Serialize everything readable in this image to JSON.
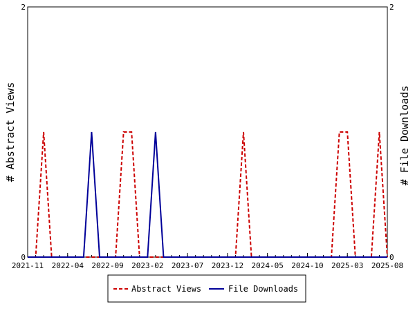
{
  "chart_data": {
    "type": "line",
    "x_tick_labels": [
      "2021-11",
      "2022-04",
      "2022-09",
      "2023-02",
      "2023-07",
      "2023-12",
      "2024-05",
      "2024-10",
      "2025-03",
      "2025-08"
    ],
    "y_ticks_left": [
      "0",
      "2"
    ],
    "y_ticks_right": [
      "0",
      "2"
    ],
    "ylabel_left": "# Abstract Views",
    "ylabel_right": "# File Downloads",
    "ylim": [
      0,
      2
    ],
    "x_range_months": [
      "2021-11",
      "2025-08"
    ],
    "grid": false,
    "legend_position": "bottom",
    "series": [
      {
        "name": "Abstract Views",
        "color": "#cc0000",
        "style": "dashed",
        "points": [
          [
            "2021-11",
            0
          ],
          [
            "2021-12",
            0
          ],
          [
            "2022-01",
            1
          ],
          [
            "2022-02",
            0
          ],
          [
            "2022-03",
            0
          ],
          [
            "2022-04",
            0
          ],
          [
            "2022-05",
            0
          ],
          [
            "2022-06",
            0
          ],
          [
            "2022-07",
            0
          ],
          [
            "2022-08",
            0
          ],
          [
            "2022-09",
            0
          ],
          [
            "2022-10",
            0
          ],
          [
            "2022-11",
            1
          ],
          [
            "2022-12",
            1
          ],
          [
            "2023-01",
            0
          ],
          [
            "2023-02",
            0
          ],
          [
            "2023-03",
            0
          ],
          [
            "2023-04",
            0
          ],
          [
            "2023-05",
            0
          ],
          [
            "2023-06",
            0
          ],
          [
            "2023-07",
            0
          ],
          [
            "2023-08",
            0
          ],
          [
            "2023-09",
            0
          ],
          [
            "2023-10",
            0
          ],
          [
            "2023-11",
            0
          ],
          [
            "2023-12",
            0
          ],
          [
            "2024-01",
            0
          ],
          [
            "2024-02",
            1
          ],
          [
            "2024-03",
            0
          ],
          [
            "2024-04",
            0
          ],
          [
            "2024-05",
            0
          ],
          [
            "2024-06",
            0
          ],
          [
            "2024-07",
            0
          ],
          [
            "2024-08",
            0
          ],
          [
            "2024-09",
            0
          ],
          [
            "2024-10",
            0
          ],
          [
            "2024-11",
            0
          ],
          [
            "2024-12",
            0
          ],
          [
            "2025-01",
            0
          ],
          [
            "2025-02",
            1
          ],
          [
            "2025-03",
            1
          ],
          [
            "2025-04",
            0
          ],
          [
            "2025-05",
            0
          ],
          [
            "2025-06",
            0
          ],
          [
            "2025-07",
            1
          ],
          [
            "2025-08",
            0
          ]
        ]
      },
      {
        "name": "File Downloads",
        "color": "#000099",
        "style": "solid",
        "points": [
          [
            "2021-11",
            0
          ],
          [
            "2021-12",
            0
          ],
          [
            "2022-01",
            0
          ],
          [
            "2022-02",
            0
          ],
          [
            "2022-03",
            0
          ],
          [
            "2022-04",
            0
          ],
          [
            "2022-05",
            0
          ],
          [
            "2022-06",
            0
          ],
          [
            "2022-07",
            1
          ],
          [
            "2022-08",
            0
          ],
          [
            "2022-09",
            0
          ],
          [
            "2022-10",
            0
          ],
          [
            "2022-11",
            0
          ],
          [
            "2022-12",
            0
          ],
          [
            "2023-01",
            0
          ],
          [
            "2023-02",
            0
          ],
          [
            "2023-03",
            1
          ],
          [
            "2023-04",
            0
          ],
          [
            "2023-05",
            0
          ],
          [
            "2023-06",
            0
          ],
          [
            "2023-07",
            0
          ],
          [
            "2023-08",
            0
          ],
          [
            "2023-09",
            0
          ],
          [
            "2023-10",
            0
          ],
          [
            "2023-11",
            0
          ],
          [
            "2023-12",
            0
          ],
          [
            "2024-01",
            0
          ],
          [
            "2024-02",
            0
          ],
          [
            "2024-03",
            0
          ],
          [
            "2024-04",
            0
          ],
          [
            "2024-05",
            0
          ],
          [
            "2024-06",
            0
          ],
          [
            "2024-07",
            0
          ],
          [
            "2024-08",
            0
          ],
          [
            "2024-09",
            0
          ],
          [
            "2024-10",
            0
          ],
          [
            "2024-11",
            0
          ],
          [
            "2024-12",
            0
          ],
          [
            "2025-01",
            0
          ],
          [
            "2025-02",
            0
          ],
          [
            "2025-03",
            0
          ],
          [
            "2025-04",
            0
          ],
          [
            "2025-05",
            0
          ],
          [
            "2025-06",
            0
          ],
          [
            "2025-07",
            0
          ],
          [
            "2025-08",
            0
          ]
        ]
      }
    ]
  }
}
